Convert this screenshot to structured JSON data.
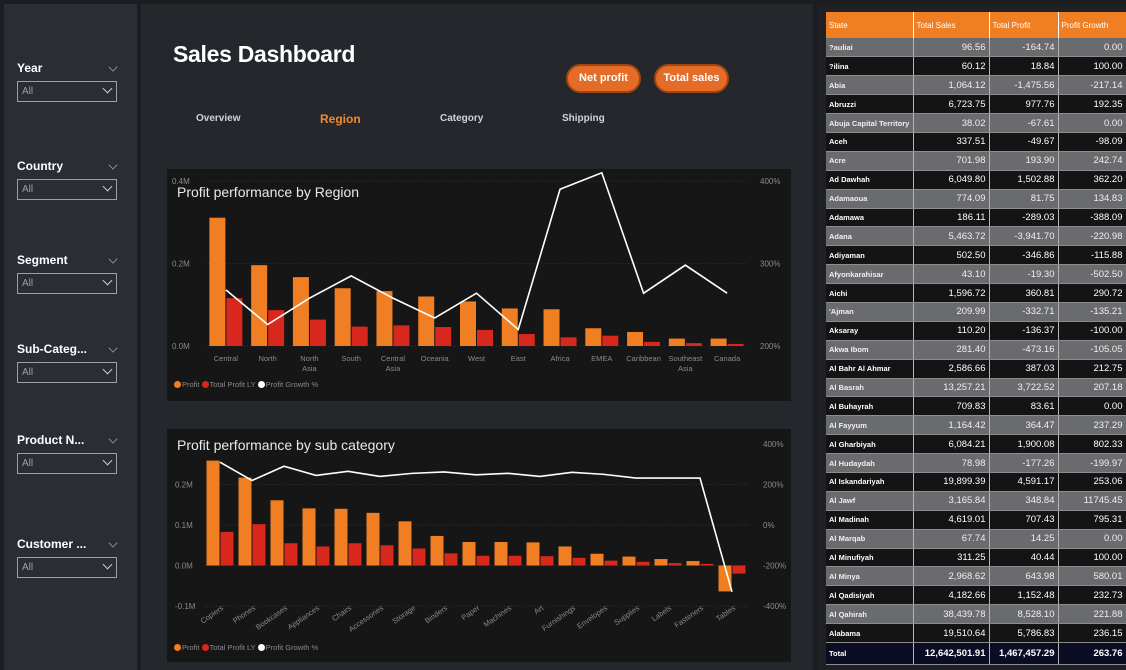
{
  "slicers": [
    {
      "title": "Year",
      "value": "All"
    },
    {
      "title": "Country",
      "value": "All"
    },
    {
      "title": "Segment",
      "value": "All"
    },
    {
      "title": "Sub-Categ...",
      "value": "All"
    },
    {
      "title": "Product N...",
      "value": "All"
    },
    {
      "title": "Customer ...",
      "value": "All"
    }
  ],
  "header": {
    "title": "Sales Dashboard",
    "buttons": {
      "net_profit": "Net profit",
      "total_sales": "Total sales"
    },
    "tabs": [
      "Overview",
      "Region",
      "Category",
      "Shipping"
    ],
    "active_tab": "Region"
  },
  "legend_labels": [
    "Profit",
    "Total Profit LY",
    "Profit Growth %"
  ],
  "colors": {
    "profit": "#f07f24",
    "profit_ly": "#d8271c",
    "growth": "#ffffff",
    "accent": "#e46c27"
  },
  "chart_data": [
    {
      "type": "bar",
      "title": "Profit performance by Region",
      "categories": [
        "Central",
        "North",
        "North Asia",
        "South",
        "Central Asia",
        "Oceania",
        "West",
        "East",
        "Africa",
        "EMEA",
        "Caribbean",
        "Southeast Asia",
        "Canada"
      ],
      "series": [
        {
          "name": "Profit",
          "values": [
            0.311,
            0.196,
            0.167,
            0.14,
            0.133,
            0.12,
            0.108,
            0.091,
            0.089,
            0.043,
            0.034,
            0.018,
            0.018
          ]
        },
        {
          "name": "Total Profit LY",
          "values": [
            0.116,
            0.087,
            0.064,
            0.047,
            0.05,
            0.046,
            0.039,
            0.029,
            0.021,
            0.025,
            0.01,
            0.007,
            0.005
          ]
        },
        {
          "name": "Profit Growth %",
          "axis": "right",
          "values": [
            268,
            226,
            258,
            285,
            258,
            234,
            264,
            220,
            390,
            410,
            264,
            298,
            264
          ]
        }
      ],
      "yticks_left": [
        "0.0M",
        "0.2M",
        "0.4M"
      ],
      "yticks_right": [
        "200%",
        "300%",
        "400%"
      ],
      "ylim": [
        0,
        0.4
      ],
      "ylim_right": [
        200,
        400
      ],
      "legend_position": "bottom-left"
    },
    {
      "type": "bar",
      "title": "Profit performance by sub category",
      "categories": [
        "Copiers",
        "Phones",
        "Bookcases",
        "Appliances",
        "Chairs",
        "Accessories",
        "Storage",
        "Binders",
        "Paper",
        "Machines",
        "Art",
        "Furnishings",
        "Envelopes",
        "Supplies",
        "Labels",
        "Fasteners",
        "Tables"
      ],
      "series": [
        {
          "name": "Profit",
          "values": [
            0.259,
            0.217,
            0.161,
            0.141,
            0.14,
            0.13,
            0.109,
            0.073,
            0.058,
            0.058,
            0.057,
            0.047,
            0.029,
            0.022,
            0.016,
            0.011,
            -0.064
          ]
        },
        {
          "name": "Total Profit LY",
          "values": [
            0.083,
            0.102,
            0.055,
            0.047,
            0.055,
            0.05,
            0.042,
            0.03,
            0.024,
            0.024,
            0.023,
            0.019,
            0.012,
            0.009,
            0.006,
            0.004,
            -0.02
          ]
        },
        {
          "name": "Profit Growth %",
          "axis": "right",
          "values": [
            310,
            220,
            290,
            245,
            265,
            240,
            255,
            262,
            248,
            255,
            240,
            260,
            250,
            232,
            232,
            232,
            -330
          ]
        }
      ],
      "yticks_left": [
        "-0.1M",
        "0.0M",
        "0.1M",
        "0.2M"
      ],
      "yticks_right": [
        "-400%",
        "-200%",
        "0%",
        "200%",
        "400%"
      ],
      "ylim": [
        -0.1,
        0.3
      ],
      "ylim_right": [
        -400,
        400
      ],
      "legend_position": "bottom-left"
    }
  ],
  "table": {
    "columns": [
      "State",
      "Total Sales",
      "Total Profit",
      "Profit Growth"
    ],
    "rows": [
      [
        "?auliai",
        "96.56",
        "-164.74",
        "0.00"
      ],
      [
        "?ilina",
        "60.12",
        "18.84",
        "100.00"
      ],
      [
        "Abia",
        "1,064.12",
        "-1,475.56",
        "-217.14"
      ],
      [
        "Abruzzi",
        "6,723.75",
        "977.76",
        "192.35"
      ],
      [
        "Abuja Capital Territory",
        "38.02",
        "-67.61",
        "0.00"
      ],
      [
        "Aceh",
        "337.51",
        "-49.67",
        "-98.09"
      ],
      [
        "Acre",
        "701.98",
        "193.90",
        "242.74"
      ],
      [
        "Ad Dawhah",
        "6,049.80",
        "1,502.88",
        "362.20"
      ],
      [
        "Adamaoua",
        "774.09",
        "81.75",
        "134.83"
      ],
      [
        "Adamawa",
        "186.11",
        "-289.03",
        "-388.09"
      ],
      [
        "Adana",
        "5,463.72",
        "-3,941.70",
        "-220.98"
      ],
      [
        "Adiyaman",
        "502.50",
        "-346.86",
        "-115.88"
      ],
      [
        "Afyonkarahisar",
        "43.10",
        "-19.30",
        "-502.50"
      ],
      [
        "Aichi",
        "1,596.72",
        "360.81",
        "290.72"
      ],
      [
        "'Ajman",
        "209.99",
        "-332.71",
        "-135.21"
      ],
      [
        "Aksaray",
        "110.20",
        "-136.37",
        "-100.00"
      ],
      [
        "Akwa Ibom",
        "281.40",
        "-473.16",
        "-105.05"
      ],
      [
        "Al Bahr Al Ahmar",
        "2,586.66",
        "387.03",
        "212.75"
      ],
      [
        "Al Basrah",
        "13,257.21",
        "3,722.52",
        "207.18"
      ],
      [
        "Al Buhayrah",
        "709.83",
        "83.61",
        "0.00"
      ],
      [
        "Al Fayyum",
        "1,164.42",
        "364.47",
        "237.29"
      ],
      [
        "Al Gharbiyah",
        "6,084.21",
        "1,900.08",
        "802.33"
      ],
      [
        "Al Hudaydah",
        "78.98",
        "-177.26",
        "-199.97"
      ],
      [
        "Al Iskandariyah",
        "19,899.39",
        "4,591.17",
        "253.06"
      ],
      [
        "Al Jawf",
        "3,165.84",
        "348.84",
        "11745.45"
      ],
      [
        "Al Madinah",
        "4,619.01",
        "707.43",
        "795.31"
      ],
      [
        "Al Marqab",
        "67.74",
        "14.25",
        "0.00"
      ],
      [
        "Al Minufiyah",
        "311.25",
        "40.44",
        "100.00"
      ],
      [
        "Al Minya",
        "2,968.62",
        "643.98",
        "580.01"
      ],
      [
        "Al Qadisiyah",
        "4,182.66",
        "1,152.48",
        "232.73"
      ],
      [
        "Al Qahirah",
        "38,439.78",
        "8,528.10",
        "221.88"
      ],
      [
        "Alabama",
        "19,510.64",
        "5,786.83",
        "236.15"
      ]
    ],
    "total": [
      "Total",
      "12,642,501.91",
      "1,467,457.29",
      "263.76"
    ]
  }
}
